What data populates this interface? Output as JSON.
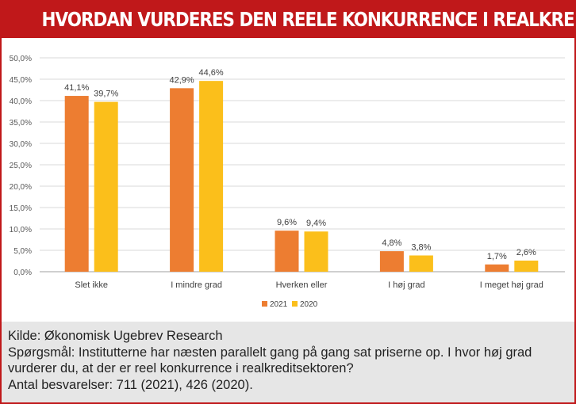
{
  "header": {
    "title": "HVORDAN VURDERES DEN REELE KONKURRENCE I REALKREDITSEKTOREN?"
  },
  "chart_data": {
    "type": "bar",
    "categories": [
      "Slet ikke",
      "I mindre grad",
      "Hverken eller",
      "I høj grad",
      "I meget høj grad"
    ],
    "series": [
      {
        "name": "2021",
        "values": [
          41.1,
          42.9,
          9.6,
          4.8,
          1.7
        ],
        "labels": [
          "41,1%",
          "42,9%",
          "9,6%",
          "4,8%",
          "1,7%"
        ],
        "color": "#ed7d31"
      },
      {
        "name": "2020",
        "values": [
          39.7,
          44.6,
          9.4,
          3.8,
          2.6
        ],
        "labels": [
          "39,7%",
          "44,6%",
          "9,4%",
          "3,8%",
          "2,6%"
        ],
        "color": "#fbbf1b"
      }
    ],
    "ylim": [
      0,
      50
    ],
    "yticks": [
      "0,0%",
      "5,0%",
      "10,0%",
      "15,0%",
      "20,0%",
      "25,0%",
      "30,0%",
      "35,0%",
      "40,0%",
      "45,0%",
      "50,0%"
    ],
    "grid": true,
    "legend": "bottom"
  },
  "footer": {
    "source": "Kilde: Økonomisk Ugebrev Research",
    "question": "Spørgsmål: Institutterne har næsten parallelt gang på gang sat priserne op. I hvor høj grad vurderer du, at der er reel konkurrence i realkreditsektoren?",
    "responses": "Antal besvarelser: 711 (2021), 426 (2020)."
  }
}
